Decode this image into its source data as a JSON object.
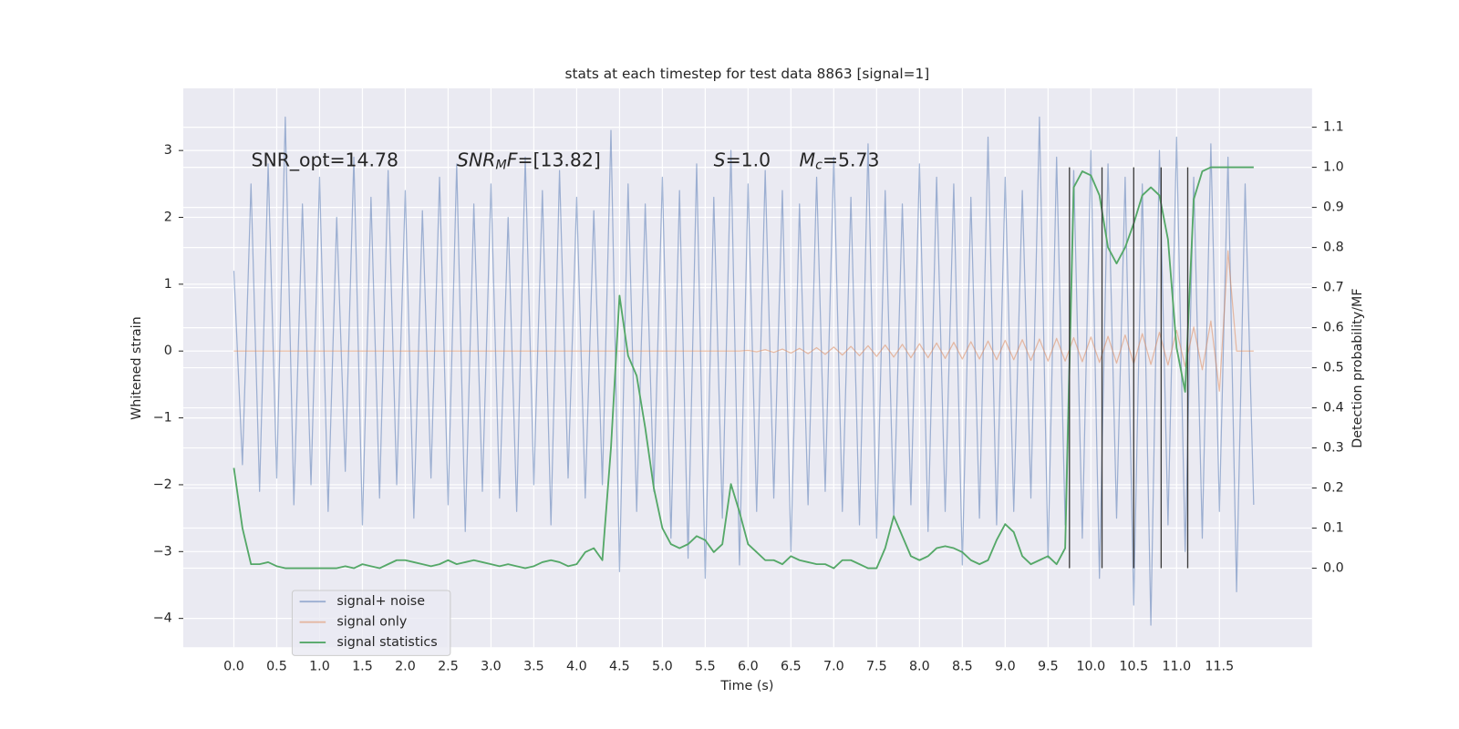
{
  "chart_data": {
    "type": "line",
    "title": "stats at each timestep for test data 8863 [signal=1]",
    "xlabel": "Time (s)",
    "ylabel": "Whitened strain",
    "y2label": "Detection probability/MF",
    "grid": true,
    "legend": "lower left",
    "xlim": [
      -0.59,
      12.58
    ],
    "ylim": [
      -4.43,
      3.93
    ],
    "y2lim": [
      -0.197,
      1.197
    ],
    "xticks": [
      {
        "value": 0,
        "label": "0.0"
      },
      0.5,
      {
        "value": 1,
        "label": "1.0"
      },
      1.5,
      {
        "value": 2,
        "label": "2.0"
      },
      2.5,
      {
        "value": 3,
        "label": "3.0"
      },
      3.5,
      {
        "value": 4,
        "label": "4.0"
      },
      4.5,
      {
        "value": 5,
        "label": "5.0"
      },
      5.5,
      {
        "value": 6,
        "label": "6.0"
      },
      6.5,
      {
        "value": 7,
        "label": "7.0"
      },
      7.5,
      {
        "value": 8,
        "label": "8.0"
      },
      8.5,
      {
        "value": 9,
        "label": "9.0"
      },
      9.5,
      {
        "value": 10,
        "label": "10.0"
      },
      10.5,
      {
        "value": 11,
        "label": "11.0"
      },
      11.5
    ],
    "yticks": [
      {
        "value": -4,
        "label": "−4"
      },
      {
        "value": -3,
        "label": "−3"
      },
      {
        "value": -2,
        "label": "−2"
      },
      {
        "value": -1,
        "label": "−1"
      },
      0,
      1,
      2,
      3
    ],
    "y2ticks": [
      {
        "value": 0,
        "label": "0.0"
      },
      0.1,
      0.2,
      0.3,
      0.4,
      0.5,
      0.6,
      0.7,
      0.8,
      0.9,
      {
        "value": 1,
        "label": "1.0"
      },
      1.1
    ],
    "annotations": [
      [
        {
          "text": "SNR_opt=14.78"
        }
      ],
      [
        {
          "text": "SNR",
          "italic": true
        },
        {
          "text": "M",
          "italic": true,
          "sub": true
        },
        {
          "text": "F",
          "italic": true
        },
        {
          "text": "=[13.82]"
        }
      ],
      [
        {
          "text": "S",
          "italic": true
        },
        {
          "text": "=1.0"
        }
      ],
      [
        {
          "text": "M",
          "italic": true
        },
        {
          "text": "c",
          "italic": true,
          "sub": true
        },
        {
          "text": "=5.73"
        }
      ]
    ],
    "vlines": {
      "x": [
        9.75,
        10.13,
        10.5,
        10.82,
        11.13
      ],
      "ymin": 0,
      "ymax": 1,
      "axis": "y2",
      "color": "#3a3a3a"
    },
    "x": [
      0,
      0.1,
      0.2,
      0.3,
      0.4,
      0.5,
      0.6,
      0.7,
      0.8,
      0.9,
      1,
      1.1,
      1.2,
      1.3,
      1.4,
      1.5,
      1.6,
      1.7,
      1.8,
      1.9,
      2,
      2.1,
      2.2,
      2.3,
      2.4,
      2.5,
      2.6,
      2.7,
      2.8,
      2.9,
      3,
      3.1,
      3.2,
      3.3,
      3.4,
      3.5,
      3.6,
      3.7,
      3.8,
      3.9,
      4,
      4.1,
      4.2,
      4.3,
      4.4,
      4.5,
      4.6,
      4.7,
      4.8,
      4.9,
      5,
      5.1,
      5.2,
      5.3,
      5.4,
      5.5,
      5.6,
      5.7,
      5.8,
      5.9,
      6,
      6.1,
      6.2,
      6.3,
      6.4,
      6.5,
      6.6,
      6.7,
      6.8,
      6.9,
      7,
      7.1,
      7.2,
      7.3,
      7.4,
      7.5,
      7.6,
      7.7,
      7.8,
      7.9,
      8,
      8.1,
      8.2,
      8.3,
      8.4,
      8.5,
      8.6,
      8.7,
      8.8,
      8.9,
      9,
      9.1,
      9.2,
      9.3,
      9.4,
      9.5,
      9.6,
      9.7,
      9.8,
      9.9,
      10,
      10.1,
      10.2,
      10.3,
      10.4,
      10.5,
      10.6,
      10.7,
      10.8,
      10.9,
      11,
      11.1,
      11.2,
      11.3,
      11.4,
      11.5,
      11.6,
      11.7,
      11.8,
      11.9
    ],
    "series": [
      {
        "name": "signal+ noise",
        "color": "#4c72b0",
        "alpha": 0.5,
        "values": [
          1.2,
          -1.7,
          2.5,
          -2.1,
          2.8,
          -1.9,
          3.5,
          -2.3,
          2.2,
          -2.0,
          2.6,
          -2.4,
          2.0,
          -1.8,
          2.9,
          -2.6,
          2.3,
          -2.2,
          2.7,
          -2.0,
          2.4,
          -2.5,
          2.1,
          -1.9,
          2.6,
          -2.3,
          2.8,
          -2.7,
          2.2,
          -2.1,
          2.5,
          -2.2,
          2.0,
          -2.4,
          2.9,
          -2.0,
          2.4,
          -2.6,
          2.7,
          -1.9,
          2.3,
          -2.2,
          2.1,
          -2.0,
          3.3,
          -3.3,
          2.5,
          -2.4,
          2.2,
          -2.1,
          2.6,
          -2.8,
          2.4,
          -3.1,
          2.8,
          -3.4,
          2.3,
          -2.5,
          3.0,
          -3.2,
          2.5,
          -2.4,
          2.7,
          -2.2,
          2.4,
          -3.0,
          2.2,
          -2.3,
          2.6,
          -2.1,
          2.9,
          -2.4,
          2.3,
          -2.6,
          3.1,
          -2.8,
          2.4,
          -2.5,
          2.2,
          -2.3,
          2.8,
          -2.7,
          2.6,
          -2.4,
          2.5,
          -3.2,
          2.3,
          -2.5,
          3.2,
          -2.6,
          2.6,
          -2.4,
          2.4,
          -2.2,
          3.5,
          -3.1,
          2.9,
          -2.6,
          2.7,
          -2.8,
          3.0,
          -3.4,
          2.8,
          -2.5,
          2.6,
          -3.8,
          2.5,
          -4.1,
          3.0,
          -2.6,
          3.2,
          -3.0,
          2.6,
          -2.8,
          3.1,
          -2.4,
          2.9,
          -3.6,
          2.5,
          -2.3
        ]
      },
      {
        "name": "signal only",
        "color": "#dd8452",
        "alpha": 0.5,
        "values": [
          0,
          0,
          0,
          0,
          0,
          0,
          0,
          0,
          0,
          0,
          0,
          0,
          0,
          0,
          0,
          0,
          0,
          0,
          0,
          0,
          0,
          0,
          0,
          0,
          0,
          0,
          0,
          0,
          0,
          0,
          0,
          0,
          0,
          0,
          0,
          0,
          0,
          0,
          0,
          0,
          0,
          0,
          0,
          0,
          0,
          0,
          0,
          0,
          0,
          0,
          0,
          0,
          0,
          0,
          0,
          0,
          0,
          0,
          0,
          0,
          0.01,
          -0.01,
          0.02,
          -0.02,
          0.03,
          -0.03,
          0.04,
          -0.04,
          0.05,
          -0.05,
          0.06,
          -0.06,
          0.07,
          -0.07,
          0.08,
          -0.08,
          0.09,
          -0.09,
          0.1,
          -0.1,
          0.11,
          -0.1,
          0.12,
          -0.11,
          0.13,
          -0.12,
          0.14,
          -0.12,
          0.15,
          -0.13,
          0.16,
          -0.13,
          0.17,
          -0.14,
          0.18,
          -0.15,
          0.19,
          -0.15,
          0.2,
          -0.16,
          0.21,
          -0.17,
          0.22,
          -0.18,
          0.24,
          -0.19,
          0.26,
          -0.2,
          0.28,
          -0.21,
          0.31,
          -0.23,
          0.36,
          -0.28,
          0.45,
          -0.6,
          1.5,
          0,
          0,
          0
        ]
      },
      {
        "name": "signal statistics",
        "color": "#55a868",
        "alpha": 1,
        "axis": "y2",
        "values": [
          0.25,
          0.1,
          0.01,
          0.01,
          0.015,
          0.005,
          0.0,
          0.0,
          0.0,
          0.0,
          0.0,
          0.0,
          0.0,
          0.005,
          0.0,
          0.01,
          0.005,
          0.0,
          0.01,
          0.02,
          0.02,
          0.015,
          0.01,
          0.005,
          0.01,
          0.02,
          0.01,
          0.015,
          0.02,
          0.015,
          0.01,
          0.005,
          0.01,
          0.005,
          0.0,
          0.005,
          0.015,
          0.02,
          0.015,
          0.005,
          0.01,
          0.04,
          0.05,
          0.02,
          0.3,
          0.68,
          0.53,
          0.48,
          0.35,
          0.2,
          0.1,
          0.06,
          0.05,
          0.06,
          0.08,
          0.07,
          0.04,
          0.06,
          0.21,
          0.14,
          0.06,
          0.04,
          0.02,
          0.02,
          0.01,
          0.03,
          0.02,
          0.015,
          0.01,
          0.01,
          0.0,
          0.02,
          0.02,
          0.01,
          0.0,
          0.0,
          0.05,
          0.13,
          0.08,
          0.03,
          0.02,
          0.03,
          0.05,
          0.055,
          0.05,
          0.04,
          0.02,
          0.01,
          0.02,
          0.07,
          0.11,
          0.09,
          0.03,
          0.01,
          0.02,
          0.03,
          0.01,
          0.05,
          0.95,
          0.99,
          0.98,
          0.93,
          0.8,
          0.76,
          0.8,
          0.86,
          0.93,
          0.95,
          0.93,
          0.82,
          0.55,
          0.44,
          0.92,
          0.99,
          1.0,
          1.0,
          1.0,
          1.0,
          1.0,
          1.0
        ]
      }
    ]
  }
}
